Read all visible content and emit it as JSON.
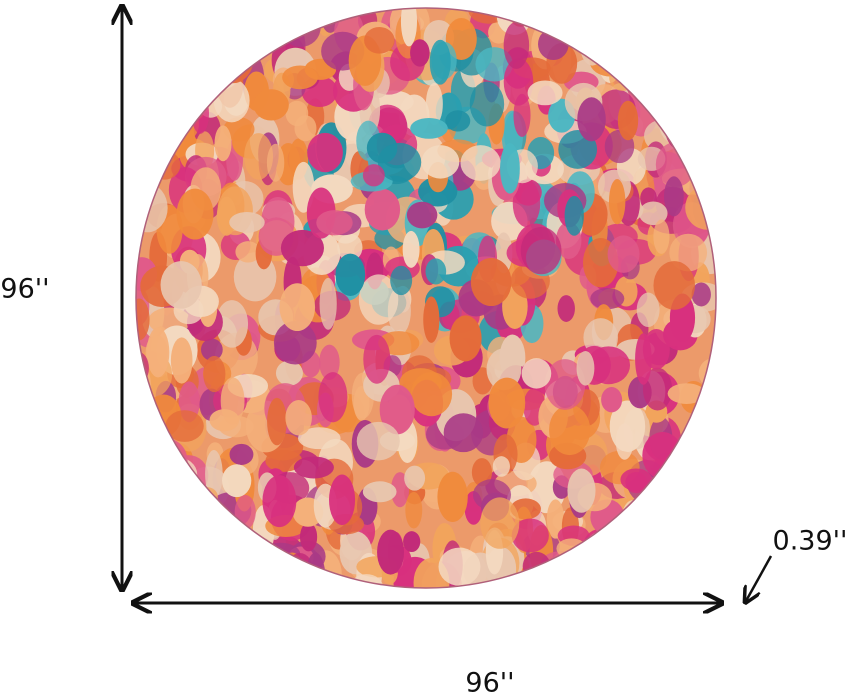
{
  "dimensions": {
    "height": "96''",
    "width": "96''",
    "thickness": "0.39''"
  }
}
